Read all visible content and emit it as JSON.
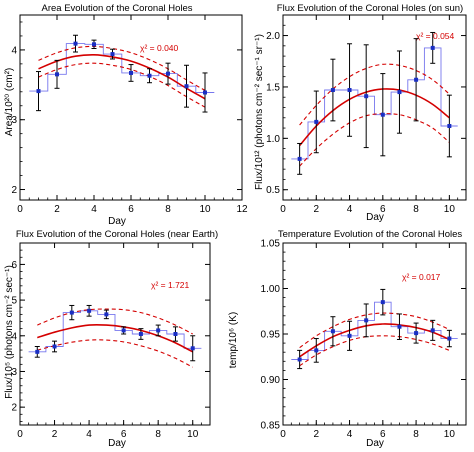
{
  "colors": {
    "fit": "#d40000",
    "binned": "#7777ee",
    "points": "#1a2fc4",
    "errorbar": "#000000",
    "axis": "#000000"
  },
  "chart_data": [
    {
      "type": "scatter",
      "title": "Area Evolution of the Coronal Holes",
      "xlabel": "Day",
      "ylabel": "Area/10²⁰ (cm²)",
      "xlim": [
        0,
        12
      ],
      "ylim": [
        1.85,
        4.5
      ],
      "xticks": [
        "0",
        "2",
        "4",
        "6",
        "8",
        "10",
        "12"
      ],
      "yticks": [
        "2",
        "3",
        "4"
      ],
      "ytick_values": [
        2,
        3,
        4
      ],
      "chi_label": "χ² = 0.040",
      "grid": false,
      "series": [
        {
          "kind": "points",
          "x": [
            1,
            2,
            3,
            4,
            5,
            6,
            7,
            8,
            9,
            10
          ],
          "y": [
            3.41,
            3.65,
            4.09,
            4.08,
            3.94,
            3.67,
            3.63,
            3.66,
            3.48,
            3.39
          ],
          "err": [
            0.28,
            0.2,
            0.12,
            0.06,
            0.07,
            0.12,
            0.1,
            0.15,
            0.3,
            0.28
          ]
        },
        {
          "kind": "fit",
          "x": [
            1,
            2,
            3,
            4,
            5,
            6,
            7,
            8,
            9,
            10
          ],
          "y": [
            3.73,
            3.84,
            3.91,
            3.93,
            3.9,
            3.84,
            3.74,
            3.61,
            3.45,
            3.3
          ]
        },
        {
          "kind": "band_upper",
          "x": [
            1,
            2,
            3,
            4,
            5,
            6,
            7,
            8,
            9,
            10
          ],
          "y": [
            3.85,
            3.96,
            4.03,
            4.05,
            4.02,
            3.96,
            3.86,
            3.73,
            3.57,
            3.42
          ]
        },
        {
          "kind": "band_lower",
          "x": [
            1,
            2,
            3,
            4,
            5,
            6,
            7,
            8,
            9,
            10
          ],
          "y": [
            3.61,
            3.72,
            3.79,
            3.81,
            3.78,
            3.72,
            3.62,
            3.49,
            3.33,
            3.18
          ]
        }
      ]
    },
    {
      "type": "scatter",
      "title": "Flux Evolution of the Coronal Holes (on sun)",
      "xlabel": "Day",
      "ylabel": "Flux/10¹² (photons cm⁻² sec⁻¹ sr⁻¹)",
      "xlim": [
        0,
        11
      ],
      "ylim": [
        0.4,
        2.2
      ],
      "xticks": [
        "0",
        "2",
        "4",
        "6",
        "8",
        "10"
      ],
      "yticks": [
        "0.5",
        "1.0",
        "1.5",
        "2.0"
      ],
      "ytick_values": [
        0.5,
        1.0,
        1.5,
        2.0
      ],
      "chi_label": "χ² = 0.054",
      "grid": false,
      "series": [
        {
          "kind": "points",
          "x": [
            1,
            2,
            3,
            4,
            5,
            6,
            7,
            8,
            9,
            10
          ],
          "y": [
            0.8,
            1.16,
            1.47,
            1.47,
            1.41,
            1.23,
            1.45,
            1.57,
            1.88,
            1.12
          ],
          "err": [
            0.15,
            0.3,
            0.3,
            0.45,
            0.5,
            0.4,
            0.4,
            0.4,
            0.15,
            0.3
          ]
        },
        {
          "kind": "fit",
          "x": [
            1,
            2,
            3,
            4,
            5,
            6,
            7,
            8,
            9,
            10
          ],
          "y": [
            0.93,
            1.12,
            1.27,
            1.38,
            1.45,
            1.48,
            1.47,
            1.42,
            1.33,
            1.2
          ]
        },
        {
          "kind": "band_upper",
          "x": [
            1,
            2,
            3,
            4,
            5,
            6,
            7,
            8,
            9,
            10
          ],
          "y": [
            1.13,
            1.32,
            1.48,
            1.6,
            1.68,
            1.72,
            1.71,
            1.66,
            1.57,
            1.43
          ]
        },
        {
          "kind": "band_lower",
          "x": [
            1,
            2,
            3,
            4,
            5,
            6,
            7,
            8,
            9,
            10
          ],
          "y": [
            0.73,
            0.9,
            1.04,
            1.15,
            1.22,
            1.24,
            1.23,
            1.18,
            1.1,
            0.96
          ]
        }
      ]
    },
    {
      "type": "scatter",
      "title": "Flux Evolution of the Coronal Holes (near Earth)",
      "xlabel": "Day",
      "ylabel": "Flux/10⁵ (photons cm⁻² sec⁻¹)",
      "xlim": [
        0,
        11
      ],
      "ylim": [
        1.5,
        6.6
      ],
      "xticks": [
        "0",
        "2",
        "4",
        "6",
        "8",
        "10"
      ],
      "yticks": [
        "2",
        "3",
        "4",
        "5",
        "6"
      ],
      "ytick_values": [
        2,
        3,
        4,
        5,
        6
      ],
      "chi_label": "χ² = 1.721",
      "grid": false,
      "series": [
        {
          "kind": "points",
          "x": [
            1,
            2,
            3,
            4,
            5,
            6,
            7,
            8,
            9,
            10
          ],
          "y": [
            3.55,
            3.7,
            4.65,
            4.7,
            4.6,
            4.15,
            4.05,
            4.15,
            4.05,
            3.65
          ],
          "err": [
            0.15,
            0.15,
            0.2,
            0.15,
            0.12,
            0.1,
            0.15,
            0.15,
            0.2,
            0.35
          ]
        },
        {
          "kind": "fit",
          "x": [
            1,
            2,
            3,
            4,
            5,
            6,
            7,
            8,
            9,
            10
          ],
          "y": [
            3.95,
            4.1,
            4.22,
            4.3,
            4.3,
            4.25,
            4.15,
            4.0,
            3.8,
            3.55
          ]
        },
        {
          "kind": "band_upper",
          "x": [
            1,
            2,
            3,
            4,
            5,
            6,
            7,
            8,
            9,
            10
          ],
          "y": [
            4.3,
            4.5,
            4.65,
            4.73,
            4.75,
            4.73,
            4.65,
            4.5,
            4.3,
            4.05
          ]
        },
        {
          "kind": "band_lower",
          "x": [
            1,
            2,
            3,
            4,
            5,
            6,
            7,
            8,
            9,
            10
          ],
          "y": [
            3.6,
            3.72,
            3.82,
            3.88,
            3.88,
            3.83,
            3.72,
            3.57,
            3.37,
            3.12
          ]
        }
      ]
    },
    {
      "type": "scatter",
      "title": "Temperature Evolution of the Coronal Holes",
      "xlabel": "Day",
      "ylabel": "temp/10⁶ (K)",
      "xlim": [
        0,
        11
      ],
      "ylim": [
        0.85,
        1.05
      ],
      "xticks": [
        "0",
        "2",
        "4",
        "6",
        "8",
        "10"
      ],
      "yticks": [
        "0.85",
        "0.90",
        "0.95",
        "1.00",
        "1.05"
      ],
      "ytick_values": [
        0.85,
        0.9,
        0.95,
        1.0,
        1.05
      ],
      "chi_label": "χ² = 0.017",
      "grid": false,
      "series": [
        {
          "kind": "points",
          "x": [
            1,
            2,
            3,
            4,
            5,
            6,
            7,
            8,
            9,
            10
          ],
          "y": [
            0.922,
            0.932,
            0.953,
            0.948,
            0.965,
            0.985,
            0.958,
            0.951,
            0.954,
            0.945
          ],
          "err": [
            0.01,
            0.013,
            0.016,
            0.016,
            0.018,
            0.014,
            0.014,
            0.011,
            0.011,
            0.009
          ]
        },
        {
          "kind": "fit",
          "x": [
            1,
            2,
            3,
            4,
            5,
            6,
            7,
            8,
            9,
            10
          ],
          "y": [
            0.925,
            0.937,
            0.947,
            0.954,
            0.959,
            0.961,
            0.96,
            0.957,
            0.952,
            0.944
          ]
        },
        {
          "kind": "band_upper",
          "x": [
            1,
            2,
            3,
            4,
            5,
            6,
            7,
            8,
            9,
            10
          ],
          "y": [
            0.935,
            0.948,
            0.958,
            0.966,
            0.971,
            0.973,
            0.972,
            0.969,
            0.963,
            0.955
          ]
        },
        {
          "kind": "band_lower",
          "x": [
            1,
            2,
            3,
            4,
            5,
            6,
            7,
            8,
            9,
            10
          ],
          "y": [
            0.915,
            0.927,
            0.936,
            0.943,
            0.947,
            0.948,
            0.947,
            0.944,
            0.939,
            0.932
          ]
        }
      ]
    }
  ]
}
